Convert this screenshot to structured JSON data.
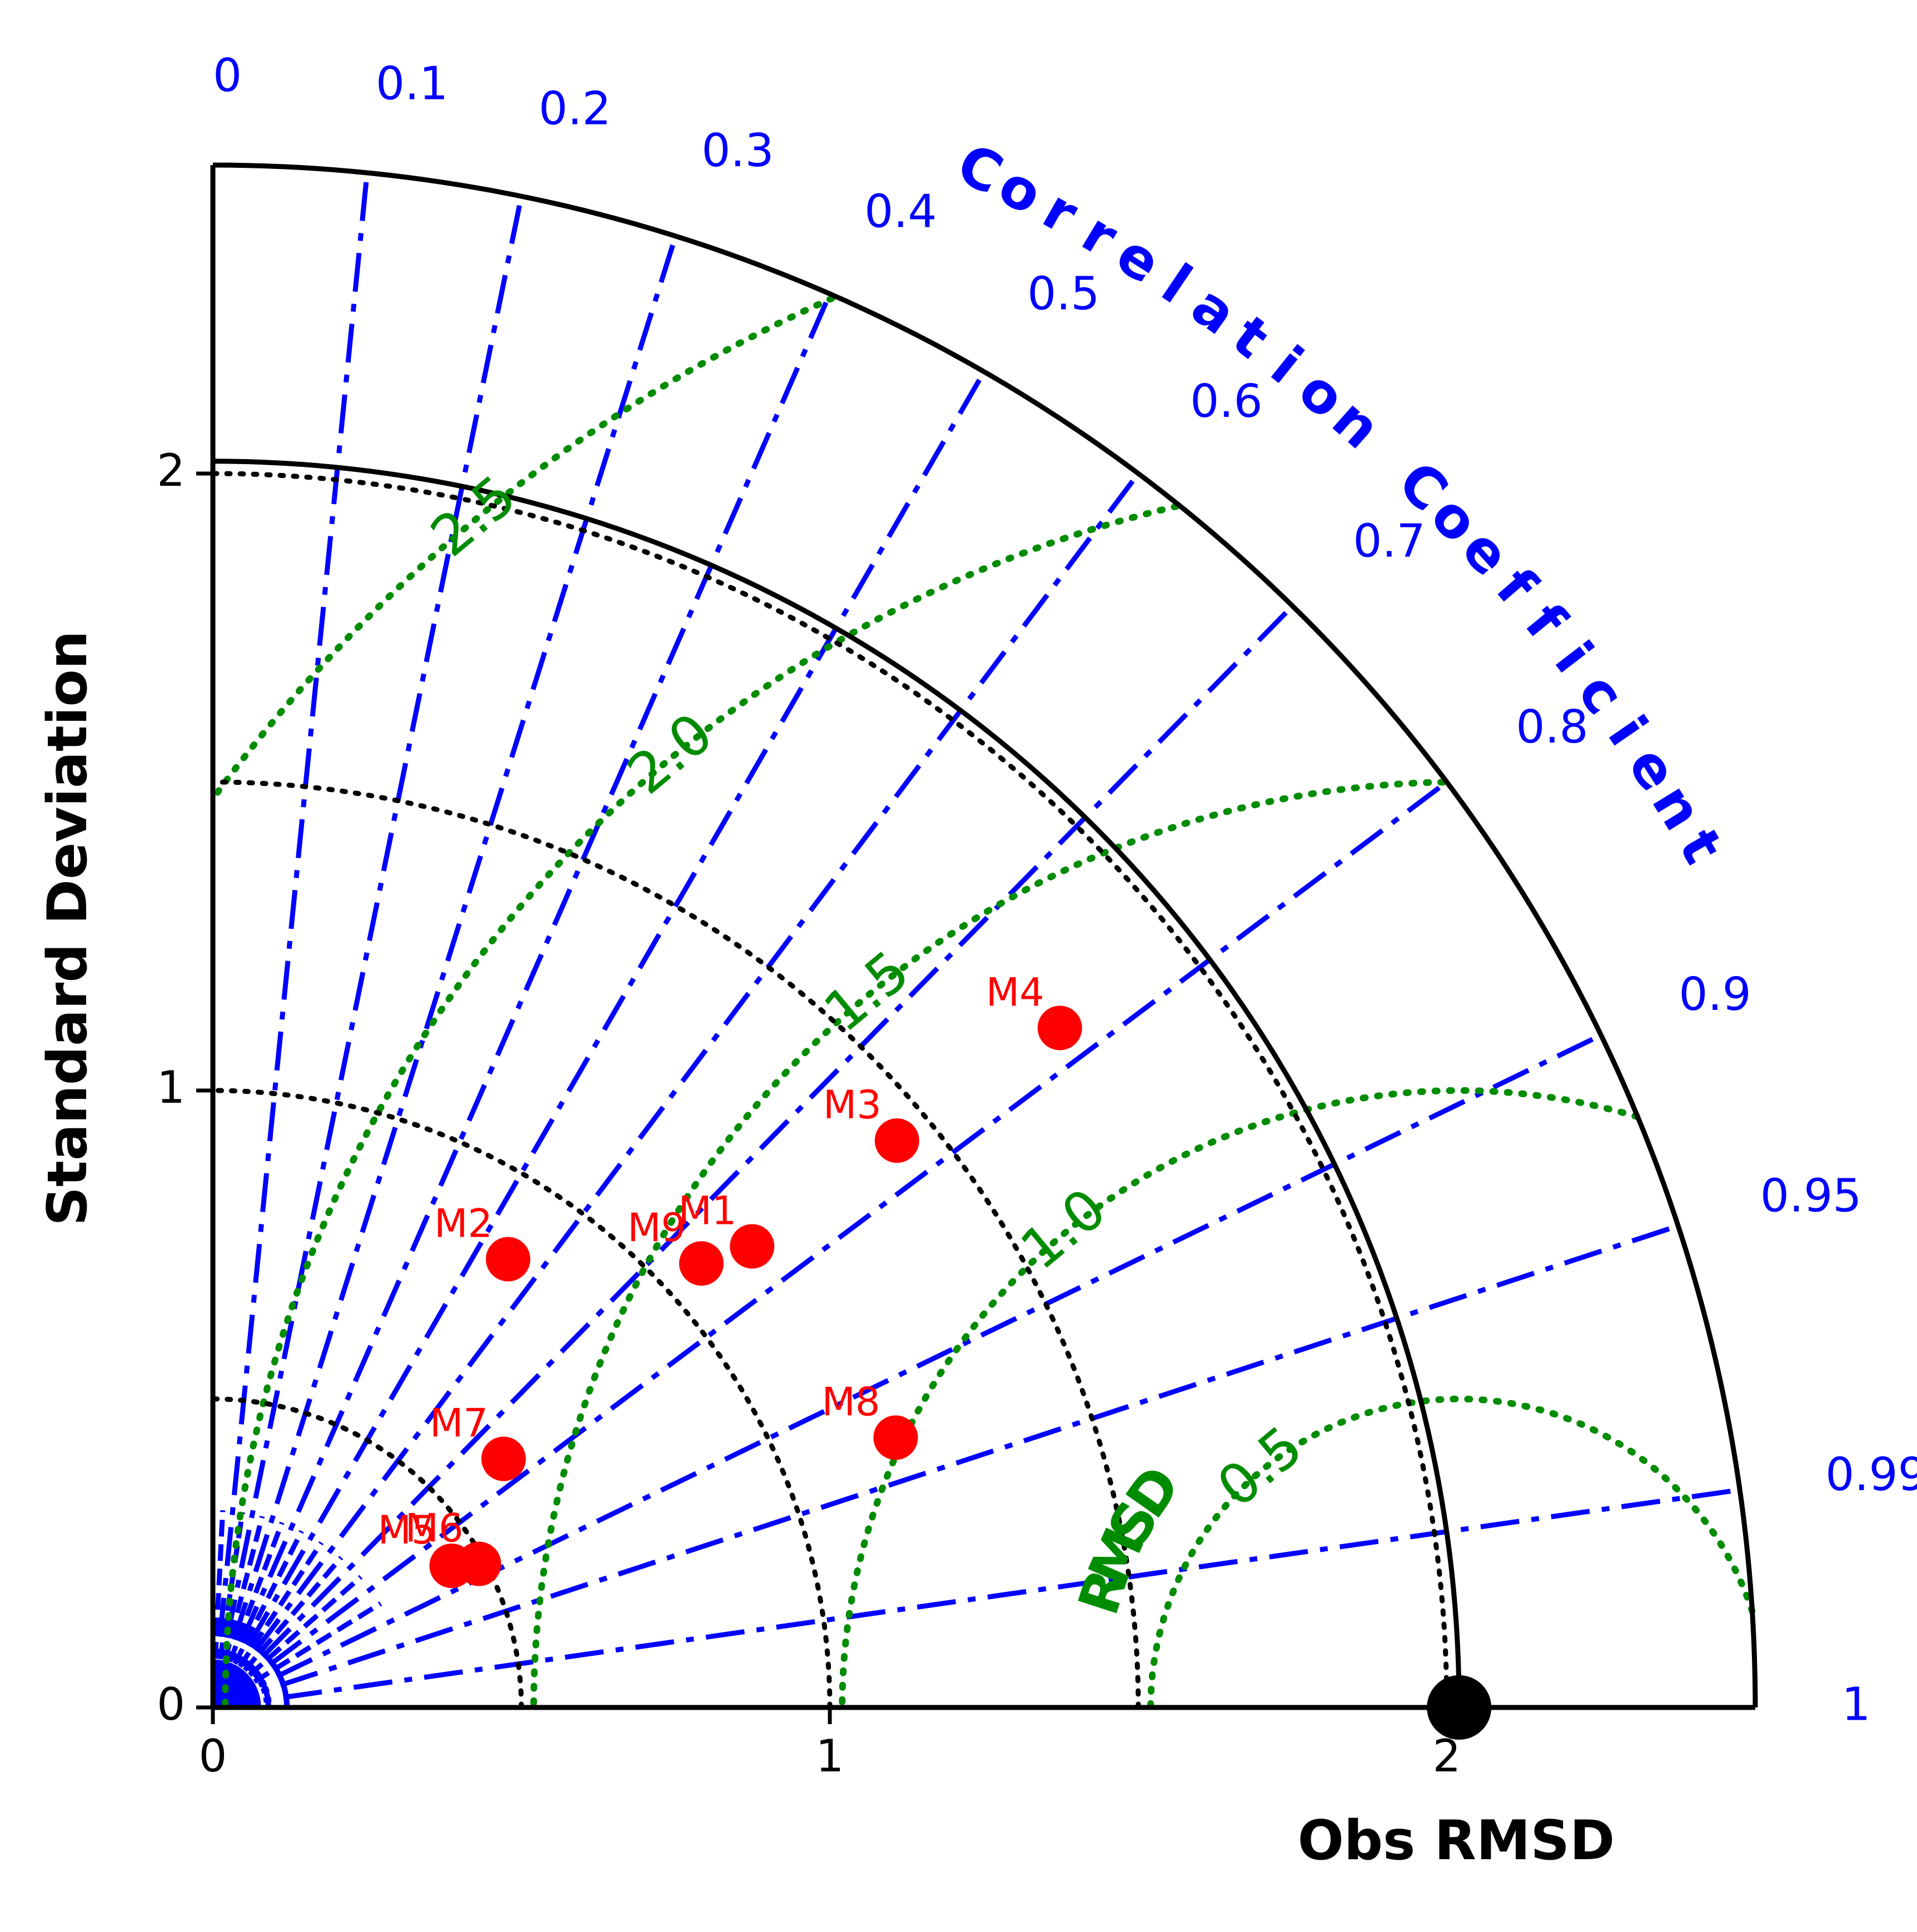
{
  "chart_data": {
    "type": "scatter",
    "subtype": "taylor-diagram",
    "title": "",
    "xlabel": "Obs RMSD",
    "ylabel": "Standard Deviation",
    "correlation_label": "Correlation Coefficient",
    "rmsd_label": "RMSD",
    "std_max": 2.5,
    "std_ticks": [
      "0",
      "1",
      "2"
    ],
    "x_ticks": [
      "0",
      "1",
      "2"
    ],
    "std_dotted_arcs": [
      0.5,
      1.0,
      1.5,
      2.0
    ],
    "correlation_ticks": [
      {
        "value": 0,
        "label": "0"
      },
      {
        "value": 0.1,
        "label": "0.1"
      },
      {
        "value": 0.2,
        "label": "0.2"
      },
      {
        "value": 0.3,
        "label": "0.3"
      },
      {
        "value": 0.4,
        "label": "0.4"
      },
      {
        "value": 0.5,
        "label": "0.5"
      },
      {
        "value": 0.6,
        "label": "0.6"
      },
      {
        "value": 0.7,
        "label": "0.7"
      },
      {
        "value": 0.8,
        "label": "0.8"
      },
      {
        "value": 0.9,
        "label": "0.9"
      },
      {
        "value": 0.95,
        "label": "0.95"
      },
      {
        "value": 0.99,
        "label": "0.99"
      },
      {
        "value": 1,
        "label": "1"
      }
    ],
    "rmsd_contours": [
      {
        "value": 0.5,
        "label": "0.5"
      },
      {
        "value": 1.0,
        "label": "1.0"
      },
      {
        "value": 1.5,
        "label": "1.5"
      },
      {
        "value": 2.0,
        "label": "2.0"
      },
      {
        "value": 2.5,
        "label": "2.5"
      }
    ],
    "reference": {
      "std": 2.02,
      "correlation": 1.0
    },
    "points": [
      {
        "label": "M1",
        "std": 1.15,
        "correlation": 0.76
      },
      {
        "label": "M2",
        "std": 0.87,
        "correlation": 0.55
      },
      {
        "label": "M3",
        "std": 1.44,
        "correlation": 0.77
      },
      {
        "label": "M4",
        "std": 1.76,
        "correlation": 0.78
      },
      {
        "label": "M5",
        "std": 0.45,
        "correlation": 0.86
      },
      {
        "label": "M6",
        "std": 0.49,
        "correlation": 0.88
      },
      {
        "label": "M7",
        "std": 0.62,
        "correlation": 0.76
      },
      {
        "label": "M8",
        "std": 1.19,
        "correlation": 0.93
      },
      {
        "label": "M9",
        "std": 1.07,
        "correlation": 0.74
      }
    ],
    "colors": {
      "points": "#ff0000",
      "correlation": "#0000ff",
      "rmsd": "#008c00",
      "std": "#000000"
    }
  }
}
